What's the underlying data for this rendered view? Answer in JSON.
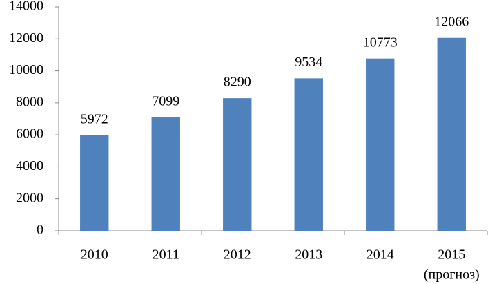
{
  "chart_data": {
    "type": "bar",
    "categories": [
      "2010",
      "2011",
      "2012",
      "2013",
      "2014",
      "2015"
    ],
    "values": [
      5972,
      7099,
      8290,
      9534,
      10773,
      12066
    ],
    "color": "#4f81bd",
    "ylim": [
      0,
      14000
    ],
    "yticks": [
      0,
      2000,
      4000,
      6000,
      8000,
      10000,
      12000,
      14000
    ],
    "grid": false,
    "data_labels": true,
    "annotations": [
      "(прогноз)"
    ]
  }
}
